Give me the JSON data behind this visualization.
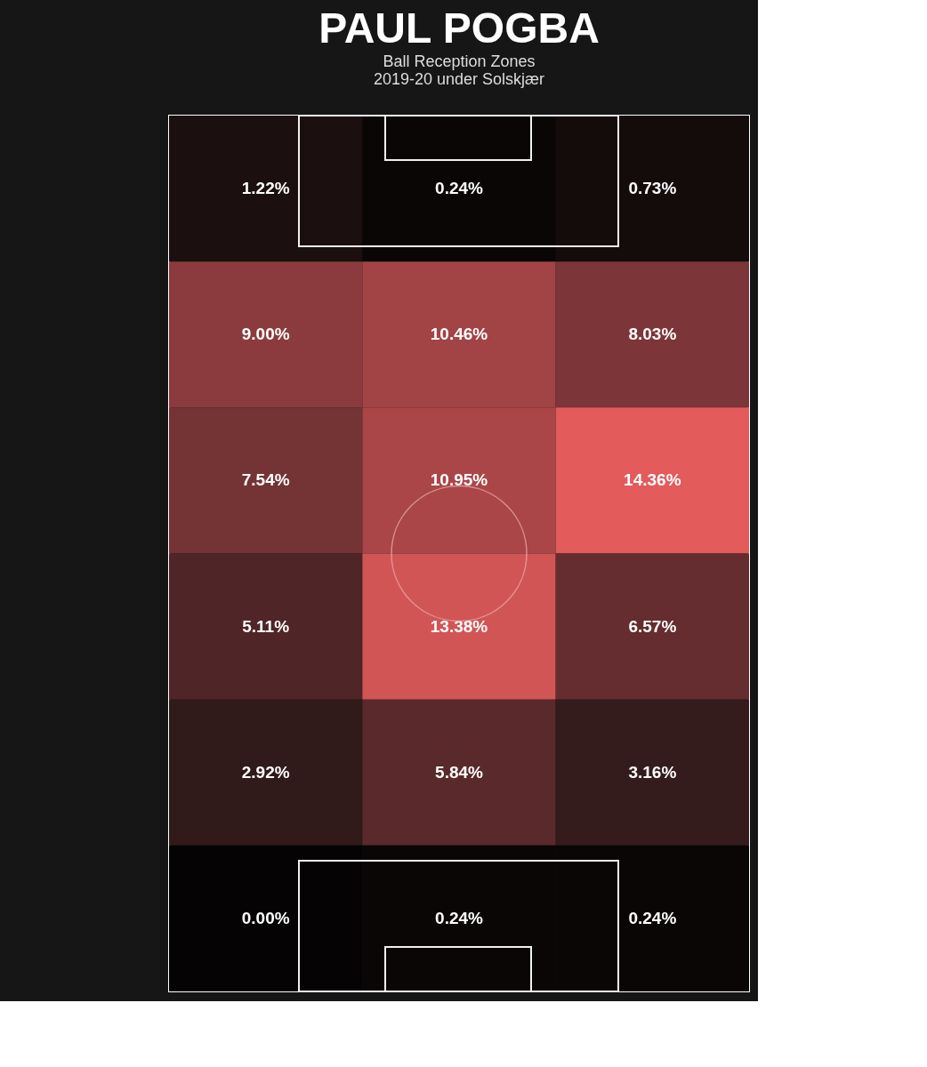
{
  "chart_data": {
    "type": "heatmap",
    "title": "PAUL POGBA",
    "subtitle": "Ball Reception Zones",
    "annotations": [
      "2019-20 under Solskjær"
    ],
    "categories": [
      null,
      null,
      null
    ],
    "y_categories": [
      null,
      null,
      null,
      null,
      null,
      null
    ],
    "cells": [
      [
        1.22,
        0.24,
        0.73
      ],
      [
        9.0,
        10.46,
        8.03
      ],
      [
        7.54,
        10.95,
        14.36
      ],
      [
        5.11,
        13.38,
        6.57
      ],
      [
        2.92,
        5.84,
        3.16
      ],
      [
        0.0,
        0.24,
        0.24
      ]
    ],
    "cell_labels": [
      [
        "1.22%",
        "0.24%",
        "0.73%"
      ],
      [
        "9.00%",
        "10.46%",
        "8.03%"
      ],
      [
        "7.54%",
        "10.95%",
        "14.36%"
      ],
      [
        "5.11%",
        "13.38%",
        "6.57%"
      ],
      [
        "2.92%",
        "5.84%",
        "3.16%"
      ],
      [
        "0.00%",
        "0.24%",
        "0.24%"
      ]
    ],
    "tick_labels": false
  }
}
